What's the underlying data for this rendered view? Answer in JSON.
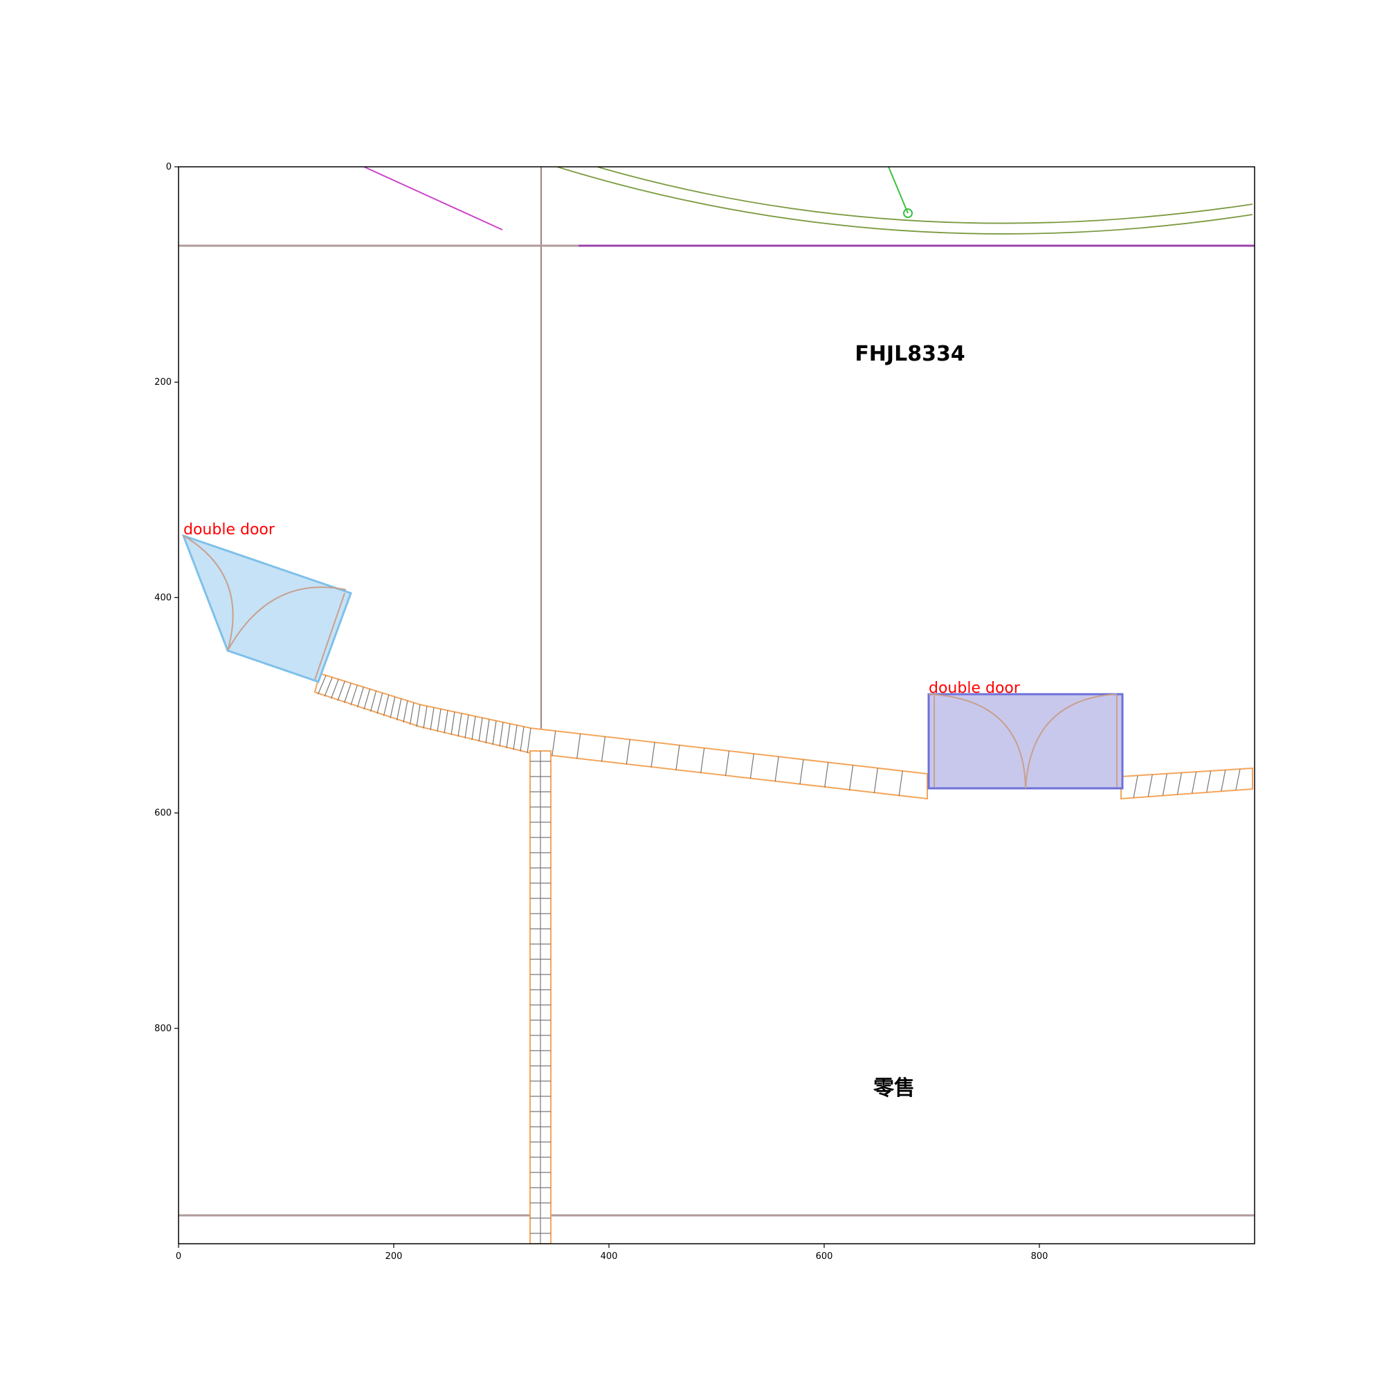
{
  "axes": {
    "xlim": [
      0,
      1000
    ],
    "ylim": [
      1000,
      0
    ],
    "x_ticks": [
      0,
      200,
      400,
      600,
      800
    ],
    "y_ticks": [
      0,
      200,
      400,
      600,
      800
    ],
    "y_inverted": true
  },
  "doors": [
    {
      "label": "double door",
      "fill": "#c6e2f6",
      "stroke": "#7ec0ea"
    },
    {
      "label": "double door",
      "fill": "#c8c8ec",
      "stroke": "#6d70d8"
    }
  ],
  "rooms": [
    {
      "label": "FHJL8334"
    },
    {
      "label": "零售"
    }
  ],
  "colors": {
    "wall_outline": "#f5a55a",
    "wall_hatch": "#777777",
    "gridline": "#a08080",
    "arc": "#c8a090",
    "path_purple": "#cc44cc",
    "curve_olive": "#7a9a40",
    "pointer_green": "#3cc040"
  }
}
